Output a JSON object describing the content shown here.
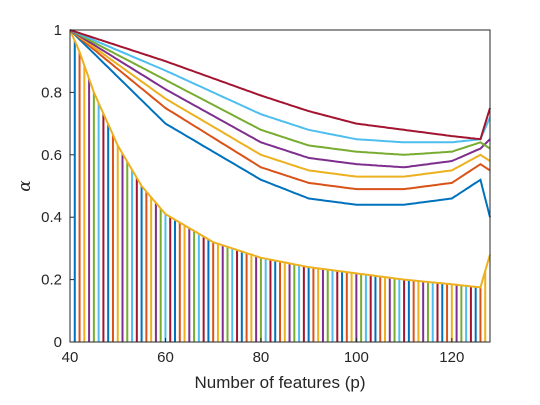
{
  "chart_data": {
    "type": "line",
    "title": "",
    "xlabel": "Number of features (p)",
    "ylabel": "α",
    "xlim": [
      40,
      128
    ],
    "ylim": [
      0,
      1
    ],
    "xticks": [
      "40",
      "60",
      "80",
      "100",
      "120"
    ],
    "yticks": [
      "0",
      "0.2",
      "0.4",
      "0.6",
      "0.8",
      "1"
    ],
    "grid": false,
    "legend": "none",
    "palette": [
      "#0072BD",
      "#D95319",
      "#EDB120",
      "#7E2F8E",
      "#77AC30",
      "#4DBEEE",
      "#A2142F"
    ],
    "upper_family": {
      "description_of_series": "one curve per start index, each decaying from the upper envelope toward a minimum near p=90-100, then rising to ~0.65 at p=127",
      "series": [
        {
          "x": [
            40,
            60,
            80,
            90,
            100,
            110,
            120,
            126,
            128
          ],
          "y": [
            1.0,
            0.7,
            0.52,
            0.46,
            0.44,
            0.44,
            0.46,
            0.52,
            0.4
          ]
        },
        {
          "x": [
            40,
            60,
            80,
            90,
            100,
            110,
            120,
            126,
            128
          ],
          "y": [
            1.0,
            0.75,
            0.56,
            0.51,
            0.49,
            0.49,
            0.51,
            0.57,
            0.55
          ]
        },
        {
          "x": [
            40,
            60,
            80,
            90,
            100,
            110,
            120,
            126,
            128
          ],
          "y": [
            1.0,
            0.78,
            0.6,
            0.55,
            0.53,
            0.53,
            0.55,
            0.6,
            0.58
          ]
        },
        {
          "x": [
            40,
            60,
            80,
            90,
            100,
            110,
            120,
            126,
            128
          ],
          "y": [
            1.0,
            0.81,
            0.64,
            0.59,
            0.57,
            0.56,
            0.58,
            0.62,
            0.65
          ]
        },
        {
          "x": [
            40,
            60,
            80,
            90,
            100,
            110,
            120,
            126,
            128
          ],
          "y": [
            1.0,
            0.84,
            0.68,
            0.63,
            0.61,
            0.6,
            0.61,
            0.64,
            0.62
          ]
        },
        {
          "x": [
            40,
            60,
            80,
            90,
            100,
            110,
            120,
            126,
            128
          ],
          "y": [
            1.0,
            0.87,
            0.73,
            0.68,
            0.65,
            0.64,
            0.64,
            0.65,
            0.72
          ]
        },
        {
          "x": [
            40,
            60,
            80,
            90,
            100,
            110,
            120,
            126,
            128
          ],
          "y": [
            1.0,
            0.9,
            0.79,
            0.74,
            0.7,
            0.68,
            0.66,
            0.65,
            0.75
          ]
        }
      ]
    },
    "lower_envelope": {
      "x": [
        40,
        42,
        45,
        50,
        55,
        60,
        70,
        80,
        90,
        100,
        110,
        120,
        126,
        128
      ],
      "y": [
        1.0,
        0.93,
        0.8,
        0.63,
        0.5,
        0.41,
        0.32,
        0.27,
        0.24,
        0.22,
        0.2,
        0.185,
        0.175,
        0.28
      ]
    },
    "spikes": {
      "x_start": 41,
      "x_end": 127,
      "step": 1,
      "baseline": 0
    }
  }
}
